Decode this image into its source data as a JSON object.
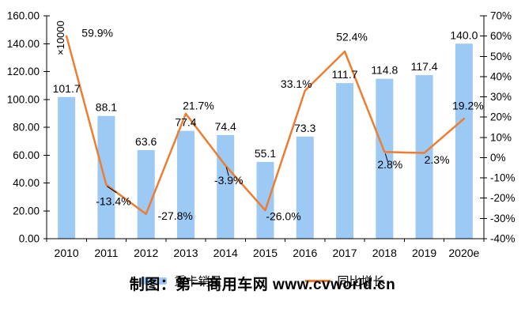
{
  "chart_data": {
    "type": "combo",
    "categories": [
      "2010",
      "2011",
      "2012",
      "2013",
      "2014",
      "2015",
      "2016",
      "2017",
      "2018",
      "2019",
      "2020e"
    ],
    "series": [
      {
        "name": "重卡销量",
        "type": "bar",
        "axis": "left",
        "color": "#9DC9F5",
        "values": [
          101.7,
          88.1,
          63.6,
          77.4,
          74.4,
          55.1,
          73.3,
          111.7,
          114.8,
          117.4,
          140.0
        ],
        "labels": [
          "101.7",
          "88.1",
          "63.6",
          "77.4",
          "74.4",
          "55.1",
          "73.3",
          "111.7",
          "114.8",
          "117.4",
          "140.0"
        ]
      },
      {
        "name": "同比增长",
        "type": "line",
        "axis": "right",
        "color": "#ED7D31",
        "values": [
          59.9,
          -13.4,
          -27.8,
          21.7,
          -3.9,
          -26.0,
          33.1,
          52.4,
          2.8,
          2.3,
          19.2
        ],
        "labels": [
          "59.9%",
          "-13.4%",
          "-27.8%",
          "21.7%",
          "-3.9%",
          "-26.0%",
          "33.1%",
          "52.4%",
          "2.8%",
          "2.3%",
          "19.2%"
        ]
      }
    ],
    "left_axis": {
      "min": 0,
      "max": 160,
      "step": 20,
      "tick_labels": [
        "0.00",
        "20.00",
        "40.00",
        "60.00",
        "80.00",
        "100.00",
        "120.00",
        "140.00",
        "160.00"
      ],
      "unit_label": "×10000"
    },
    "right_axis": {
      "min": -40,
      "max": 70,
      "step": 10,
      "tick_labels": [
        "-40%",
        "-30%",
        "-20%",
        "-10%",
        "0%",
        "10%",
        "20%",
        "30%",
        "40%",
        "50%",
        "60%",
        "70%"
      ]
    },
    "grid": false,
    "legend_position": "bottom"
  },
  "legend": {
    "items": [
      {
        "label": "重卡销量",
        "swatch": "bar",
        "color": "#9DC9F5"
      },
      {
        "label": "同比增长",
        "swatch": "line",
        "color": "#ED7D31"
      }
    ]
  },
  "footer": {
    "credit": "制图：第一商用车网 www.cvworld.cn"
  }
}
